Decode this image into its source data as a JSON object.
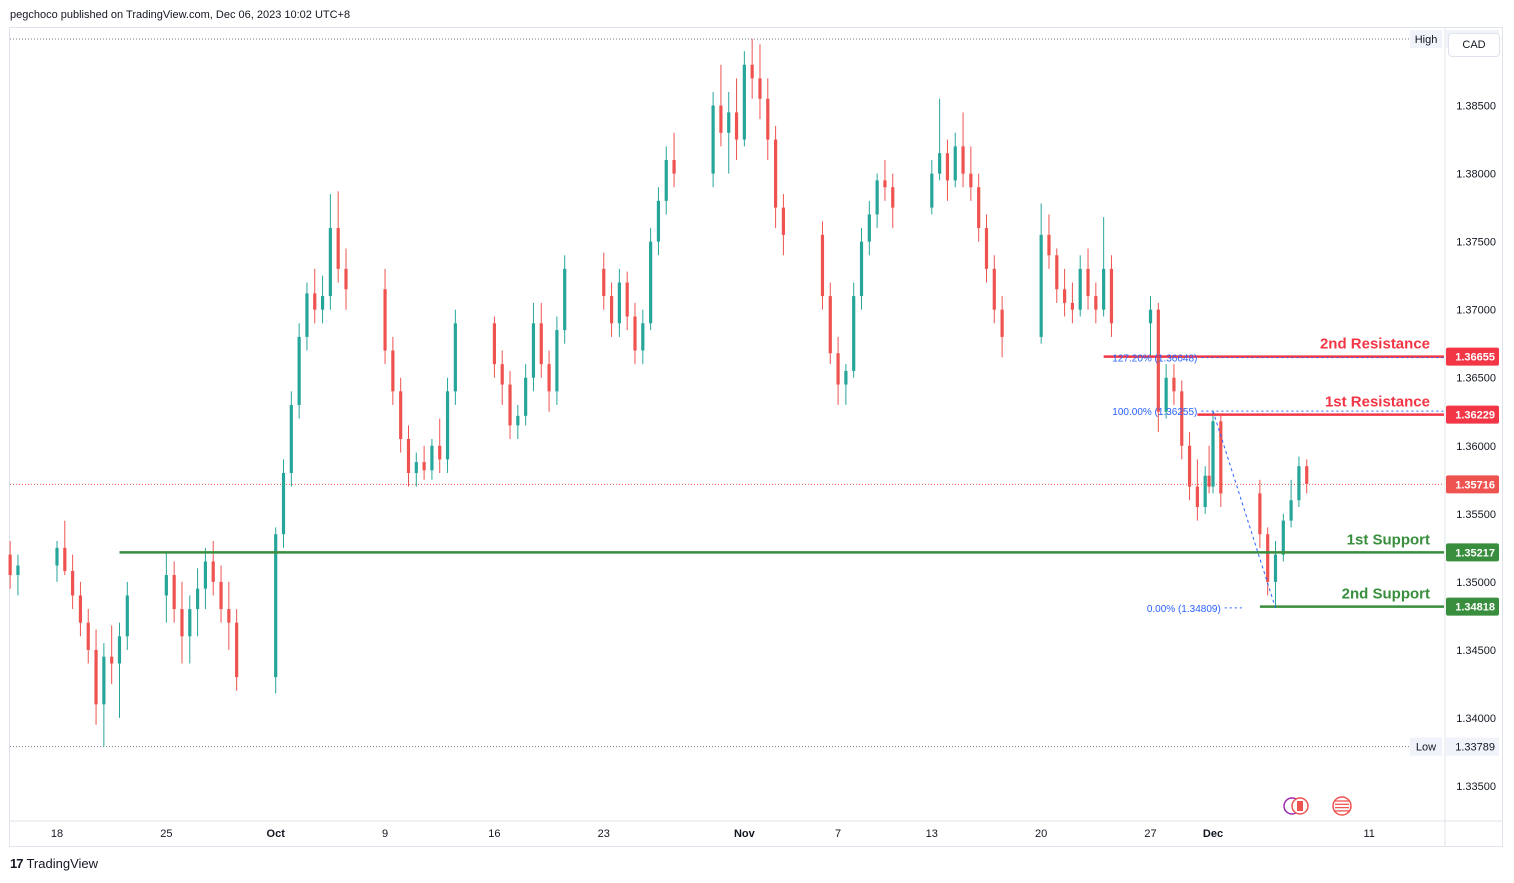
{
  "header": {
    "publisher_line": "pegchoco published on TradingView.com, Dec 06, 2023 10:02 UTC+8"
  },
  "footer": {
    "brand": "TradingView",
    "logo_glyph": "17"
  },
  "currency_button": "CAD",
  "colors": {
    "up": "#26a69a",
    "down": "#ef5350",
    "resistance": "#f23645",
    "support": "#388e3c",
    "fib": "#2962ff",
    "grid": "#f0f3fa",
    "axis_text": "#131722"
  },
  "chart_data": {
    "type": "candlestick",
    "symbol_currency": "CAD",
    "y_axis": {
      "ticks": [
        "1.38500",
        "1.38000",
        "1.37500",
        "1.37000",
        "1.36500",
        "1.36000",
        "1.35500",
        "1.35000",
        "1.34500",
        "1.34000",
        "1.33500"
      ],
      "tick_values": [
        1.385,
        1.38,
        1.375,
        1.37,
        1.365,
        1.36,
        1.355,
        1.35,
        1.345,
        1.34,
        1.335
      ],
      "ylim": [
        1.3325,
        1.3907
      ]
    },
    "x_axis": {
      "ticks": [
        "18",
        "25",
        "Oct",
        "9",
        "16",
        "23",
        "Nov",
        "7",
        "13",
        "20",
        "27",
        "Dec",
        "11"
      ],
      "tick_dates": [
        "2023-09-18",
        "2023-09-25",
        "2023-10-02",
        "2023-10-09",
        "2023-10-16",
        "2023-10-23",
        "2023-11-01",
        "2023-11-07",
        "2023-11-13",
        "2023-11-20",
        "2023-11-27",
        "2023-12-01",
        "2023-12-11"
      ]
    },
    "high": {
      "label": "High",
      "value": "1.38989"
    },
    "low": {
      "label": "Low",
      "value": "1.33789"
    },
    "last_price": "1.35716",
    "levels": [
      {
        "name": "2nd Resistance",
        "value": "1.36655",
        "kind": "resistance",
        "start_date": "2023-11-24"
      },
      {
        "name": "1st Resistance",
        "value": "1.36229",
        "kind": "resistance",
        "start_date": "2023-11-30"
      },
      {
        "name": "1st Support",
        "value": "1.35217",
        "kind": "support",
        "start_date": "2023-09-22"
      },
      {
        "name": "2nd Support",
        "value": "1.34818",
        "kind": "support",
        "start_date": "2023-12-04"
      }
    ],
    "fib_labels": [
      {
        "text": "127.20% (1.36648)",
        "value": 1.36648
      },
      {
        "text": "100.00% (1.36255)",
        "value": 1.36255
      },
      {
        "text": "0.00% (1.34809)",
        "value": 1.34809
      }
    ],
    "candles": [
      {
        "t": "2023-09-14 00:00",
        "o": 1.3545,
        "h": 1.356,
        "l": 1.353,
        "c": 1.354
      },
      {
        "t": "2023-09-14 12:00",
        "o": 1.354,
        "h": 1.3548,
        "l": 1.3515,
        "c": 1.352
      },
      {
        "t": "2023-09-15 00:00",
        "o": 1.352,
        "h": 1.353,
        "l": 1.3495,
        "c": 1.3505
      },
      {
        "t": "2023-09-15 12:00",
        "o": 1.3505,
        "h": 1.352,
        "l": 1.349,
        "c": 1.3512
      },
      {
        "t": "2023-09-18 00:00",
        "o": 1.3512,
        "h": 1.353,
        "l": 1.35,
        "c": 1.3525
      },
      {
        "t": "2023-09-18 12:00",
        "o": 1.3525,
        "h": 1.3545,
        "l": 1.3505,
        "c": 1.3508
      },
      {
        "t": "2023-09-19 00:00",
        "o": 1.3508,
        "h": 1.352,
        "l": 1.348,
        "c": 1.349
      },
      {
        "t": "2023-09-19 12:00",
        "o": 1.349,
        "h": 1.35,
        "l": 1.346,
        "c": 1.347
      },
      {
        "t": "2023-09-20 00:00",
        "o": 1.347,
        "h": 1.348,
        "l": 1.344,
        "c": 1.345
      },
      {
        "t": "2023-09-20 12:00",
        "o": 1.345,
        "h": 1.3465,
        "l": 1.3395,
        "c": 1.341
      },
      {
        "t": "2023-09-21 00:00",
        "o": 1.341,
        "h": 1.3455,
        "l": 1.3379,
        "c": 1.3445
      },
      {
        "t": "2023-09-21 12:00",
        "o": 1.3445,
        "h": 1.3468,
        "l": 1.3425,
        "c": 1.344
      },
      {
        "t": "2023-09-22 00:00",
        "o": 1.344,
        "h": 1.347,
        "l": 1.34,
        "c": 1.346
      },
      {
        "t": "2023-09-22 12:00",
        "o": 1.346,
        "h": 1.35,
        "l": 1.345,
        "c": 1.349
      },
      {
        "t": "2023-09-25 00:00",
        "o": 1.349,
        "h": 1.3522,
        "l": 1.347,
        "c": 1.3505
      },
      {
        "t": "2023-09-25 12:00",
        "o": 1.3505,
        "h": 1.3515,
        "l": 1.347,
        "c": 1.348
      },
      {
        "t": "2023-09-26 00:00",
        "o": 1.348,
        "h": 1.35,
        "l": 1.344,
        "c": 1.346
      },
      {
        "t": "2023-09-26 12:00",
        "o": 1.346,
        "h": 1.349,
        "l": 1.344,
        "c": 1.348
      },
      {
        "t": "2023-09-27 00:00",
        "o": 1.348,
        "h": 1.351,
        "l": 1.346,
        "c": 1.3495
      },
      {
        "t": "2023-09-27 12:00",
        "o": 1.3495,
        "h": 1.3525,
        "l": 1.348,
        "c": 1.3515
      },
      {
        "t": "2023-09-28 00:00",
        "o": 1.3515,
        "h": 1.353,
        "l": 1.349,
        "c": 1.35
      },
      {
        "t": "2023-09-28 12:00",
        "o": 1.35,
        "h": 1.3512,
        "l": 1.347,
        "c": 1.348
      },
      {
        "t": "2023-09-29 00:00",
        "o": 1.348,
        "h": 1.35,
        "l": 1.345,
        "c": 1.347
      },
      {
        "t": "2023-09-29 12:00",
        "o": 1.347,
        "h": 1.348,
        "l": 1.342,
        "c": 1.343
      },
      {
        "t": "2023-10-02 00:00",
        "o": 1.343,
        "h": 1.354,
        "l": 1.3418,
        "c": 1.3535
      },
      {
        "t": "2023-10-02 12:00",
        "o": 1.3535,
        "h": 1.359,
        "l": 1.3525,
        "c": 1.358
      },
      {
        "t": "2023-10-03 00:00",
        "o": 1.358,
        "h": 1.364,
        "l": 1.357,
        "c": 1.363
      },
      {
        "t": "2023-10-03 12:00",
        "o": 1.363,
        "h": 1.369,
        "l": 1.362,
        "c": 1.368
      },
      {
        "t": "2023-10-04 00:00",
        "o": 1.368,
        "h": 1.372,
        "l": 1.367,
        "c": 1.3712
      },
      {
        "t": "2023-10-04 12:00",
        "o": 1.3712,
        "h": 1.373,
        "l": 1.369,
        "c": 1.37
      },
      {
        "t": "2023-10-05 00:00",
        "o": 1.37,
        "h": 1.3725,
        "l": 1.369,
        "c": 1.371
      },
      {
        "t": "2023-10-05 12:00",
        "o": 1.371,
        "h": 1.3785,
        "l": 1.37,
        "c": 1.376
      },
      {
        "t": "2023-10-06 00:00",
        "o": 1.376,
        "h": 1.3787,
        "l": 1.372,
        "c": 1.373
      },
      {
        "t": "2023-10-06 12:00",
        "o": 1.373,
        "h": 1.3745,
        "l": 1.37,
        "c": 1.3715
      },
      {
        "t": "2023-10-09 00:00",
        "o": 1.3715,
        "h": 1.373,
        "l": 1.366,
        "c": 1.367
      },
      {
        "t": "2023-10-09 12:00",
        "o": 1.367,
        "h": 1.368,
        "l": 1.363,
        "c": 1.364
      },
      {
        "t": "2023-10-10 00:00",
        "o": 1.364,
        "h": 1.365,
        "l": 1.3595,
        "c": 1.3605
      },
      {
        "t": "2023-10-10 12:00",
        "o": 1.3605,
        "h": 1.3615,
        "l": 1.357,
        "c": 1.358
      },
      {
        "t": "2023-10-11 00:00",
        "o": 1.358,
        "h": 1.3595,
        "l": 1.357,
        "c": 1.3588
      },
      {
        "t": "2023-10-11 12:00",
        "o": 1.3588,
        "h": 1.36,
        "l": 1.3575,
        "c": 1.3582
      },
      {
        "t": "2023-10-12 00:00",
        "o": 1.3582,
        "h": 1.3605,
        "l": 1.3575,
        "c": 1.36
      },
      {
        "t": "2023-10-12 12:00",
        "o": 1.36,
        "h": 1.362,
        "l": 1.358,
        "c": 1.359
      },
      {
        "t": "2023-10-13 00:00",
        "o": 1.359,
        "h": 1.365,
        "l": 1.358,
        "c": 1.364
      },
      {
        "t": "2023-10-13 12:00",
        "o": 1.364,
        "h": 1.37,
        "l": 1.363,
        "c": 1.369
      },
      {
        "t": "2023-10-16 00:00",
        "o": 1.369,
        "h": 1.3695,
        "l": 1.365,
        "c": 1.366
      },
      {
        "t": "2023-10-16 12:00",
        "o": 1.366,
        "h": 1.367,
        "l": 1.363,
        "c": 1.3645
      },
      {
        "t": "2023-10-17 00:00",
        "o": 1.3645,
        "h": 1.3655,
        "l": 1.3605,
        "c": 1.3615
      },
      {
        "t": "2023-10-17 12:00",
        "o": 1.3615,
        "h": 1.363,
        "l": 1.3605,
        "c": 1.3622
      },
      {
        "t": "2023-10-18 00:00",
        "o": 1.3622,
        "h": 1.366,
        "l": 1.3615,
        "c": 1.365
      },
      {
        "t": "2023-10-18 12:00",
        "o": 1.365,
        "h": 1.3705,
        "l": 1.364,
        "c": 1.369
      },
      {
        "t": "2023-10-19 00:00",
        "o": 1.369,
        "h": 1.3705,
        "l": 1.365,
        "c": 1.366
      },
      {
        "t": "2023-10-19 12:00",
        "o": 1.366,
        "h": 1.367,
        "l": 1.3625,
        "c": 1.364
      },
      {
        "t": "2023-10-20 00:00",
        "o": 1.364,
        "h": 1.3695,
        "l": 1.363,
        "c": 1.3685
      },
      {
        "t": "2023-10-20 12:00",
        "o": 1.3685,
        "h": 1.374,
        "l": 1.3675,
        "c": 1.373
      },
      {
        "t": "2023-10-23 00:00",
        "o": 1.373,
        "h": 1.3742,
        "l": 1.37,
        "c": 1.371
      },
      {
        "t": "2023-10-23 12:00",
        "o": 1.371,
        "h": 1.372,
        "l": 1.368,
        "c": 1.369
      },
      {
        "t": "2023-10-24 00:00",
        "o": 1.369,
        "h": 1.373,
        "l": 1.368,
        "c": 1.372
      },
      {
        "t": "2023-10-24 12:00",
        "o": 1.372,
        "h": 1.3728,
        "l": 1.3685,
        "c": 1.3695
      },
      {
        "t": "2023-10-25 00:00",
        "o": 1.3695,
        "h": 1.3705,
        "l": 1.366,
        "c": 1.367
      },
      {
        "t": "2023-10-25 12:00",
        "o": 1.367,
        "h": 1.37,
        "l": 1.366,
        "c": 1.369
      },
      {
        "t": "2023-10-26 00:00",
        "o": 1.369,
        "h": 1.376,
        "l": 1.3685,
        "c": 1.375
      },
      {
        "t": "2023-10-26 12:00",
        "o": 1.375,
        "h": 1.379,
        "l": 1.374,
        "c": 1.378
      },
      {
        "t": "2023-10-27 00:00",
        "o": 1.378,
        "h": 1.382,
        "l": 1.377,
        "c": 1.381
      },
      {
        "t": "2023-10-27 12:00",
        "o": 1.381,
        "h": 1.383,
        "l": 1.379,
        "c": 1.38
      },
      {
        "t": "2023-10-30 00:00",
        "o": 1.38,
        "h": 1.386,
        "l": 1.379,
        "c": 1.385
      },
      {
        "t": "2023-10-30 12:00",
        "o": 1.385,
        "h": 1.388,
        "l": 1.382,
        "c": 1.383
      },
      {
        "t": "2023-10-31 00:00",
        "o": 1.383,
        "h": 1.386,
        "l": 1.38,
        "c": 1.3845
      },
      {
        "t": "2023-10-31 12:00",
        "o": 1.3845,
        "h": 1.387,
        "l": 1.381,
        "c": 1.3825
      },
      {
        "t": "2023-11-01 00:00",
        "o": 1.3825,
        "h": 1.389,
        "l": 1.382,
        "c": 1.388
      },
      {
        "t": "2023-11-01 12:00",
        "o": 1.388,
        "h": 1.3899,
        "l": 1.3855,
        "c": 1.387
      },
      {
        "t": "2023-11-02 00:00",
        "o": 1.387,
        "h": 1.3895,
        "l": 1.384,
        "c": 1.3855
      },
      {
        "t": "2023-11-02 12:00",
        "o": 1.3855,
        "h": 1.387,
        "l": 1.381,
        "c": 1.3825
      },
      {
        "t": "2023-11-03 00:00",
        "o": 1.3825,
        "h": 1.3835,
        "l": 1.376,
        "c": 1.3775
      },
      {
        "t": "2023-11-03 12:00",
        "o": 1.3775,
        "h": 1.3785,
        "l": 1.374,
        "c": 1.3755
      },
      {
        "t": "2023-11-06 00:00",
        "o": 1.3755,
        "h": 1.3765,
        "l": 1.37,
        "c": 1.371
      },
      {
        "t": "2023-11-06 12:00",
        "o": 1.371,
        "h": 1.372,
        "l": 1.366,
        "c": 1.3668
      },
      {
        "t": "2023-11-07 00:00",
        "o": 1.3668,
        "h": 1.368,
        "l": 1.363,
        "c": 1.3645
      },
      {
        "t": "2023-11-07 12:00",
        "o": 1.3645,
        "h": 1.366,
        "l": 1.363,
        "c": 1.3655
      },
      {
        "t": "2023-11-08 00:00",
        "o": 1.3655,
        "h": 1.372,
        "l": 1.365,
        "c": 1.371
      },
      {
        "t": "2023-11-08 12:00",
        "o": 1.371,
        "h": 1.376,
        "l": 1.37,
        "c": 1.375
      },
      {
        "t": "2023-11-09 00:00",
        "o": 1.375,
        "h": 1.378,
        "l": 1.374,
        "c": 1.377
      },
      {
        "t": "2023-11-09 12:00",
        "o": 1.377,
        "h": 1.38,
        "l": 1.376,
        "c": 1.3795
      },
      {
        "t": "2023-11-10 00:00",
        "o": 1.3795,
        "h": 1.381,
        "l": 1.378,
        "c": 1.379
      },
      {
        "t": "2023-11-10 12:00",
        "o": 1.379,
        "h": 1.38,
        "l": 1.376,
        "c": 1.3775
      },
      {
        "t": "2023-11-13 00:00",
        "o": 1.3775,
        "h": 1.381,
        "l": 1.377,
        "c": 1.38
      },
      {
        "t": "2023-11-13 12:00",
        "o": 1.38,
        "h": 1.3855,
        "l": 1.3795,
        "c": 1.3815
      },
      {
        "t": "2023-11-14 00:00",
        "o": 1.3815,
        "h": 1.3825,
        "l": 1.378,
        "c": 1.3795
      },
      {
        "t": "2023-11-14 12:00",
        "o": 1.3795,
        "h": 1.383,
        "l": 1.379,
        "c": 1.382
      },
      {
        "t": "2023-11-15 00:00",
        "o": 1.382,
        "h": 1.3845,
        "l": 1.379,
        "c": 1.38
      },
      {
        "t": "2023-11-15 12:00",
        "o": 1.38,
        "h": 1.382,
        "l": 1.378,
        "c": 1.379
      },
      {
        "t": "2023-11-16 00:00",
        "o": 1.379,
        "h": 1.38,
        "l": 1.375,
        "c": 1.376
      },
      {
        "t": "2023-11-16 12:00",
        "o": 1.376,
        "h": 1.377,
        "l": 1.372,
        "c": 1.373
      },
      {
        "t": "2023-11-17 00:00",
        "o": 1.373,
        "h": 1.374,
        "l": 1.369,
        "c": 1.37
      },
      {
        "t": "2023-11-17 12:00",
        "o": 1.37,
        "h": 1.371,
        "l": 1.3665,
        "c": 1.368
      },
      {
        "t": "2023-11-20 00:00",
        "o": 1.368,
        "h": 1.3778,
        "l": 1.3675,
        "c": 1.3755
      },
      {
        "t": "2023-11-20 12:00",
        "o": 1.3755,
        "h": 1.377,
        "l": 1.373,
        "c": 1.374
      },
      {
        "t": "2023-11-21 00:00",
        "o": 1.374,
        "h": 1.3745,
        "l": 1.3705,
        "c": 1.3715
      },
      {
        "t": "2023-11-21 12:00",
        "o": 1.3715,
        "h": 1.373,
        "l": 1.3695,
        "c": 1.3705
      },
      {
        "t": "2023-11-22 00:00",
        "o": 1.3705,
        "h": 1.372,
        "l": 1.369,
        "c": 1.37
      },
      {
        "t": "2023-11-22 12:00",
        "o": 1.37,
        "h": 1.374,
        "l": 1.3695,
        "c": 1.373
      },
      {
        "t": "2023-11-23 00:00",
        "o": 1.373,
        "h": 1.3745,
        "l": 1.37,
        "c": 1.371
      },
      {
        "t": "2023-11-23 12:00",
        "o": 1.371,
        "h": 1.372,
        "l": 1.369,
        "c": 1.37
      },
      {
        "t": "2023-11-24 00:00",
        "o": 1.37,
        "h": 1.3768,
        "l": 1.3695,
        "c": 1.373
      },
      {
        "t": "2023-11-24 12:00",
        "o": 1.373,
        "h": 1.374,
        "l": 1.368,
        "c": 1.369
      },
      {
        "t": "2023-11-27 00:00",
        "o": 1.369,
        "h": 1.371,
        "l": 1.3665,
        "c": 1.37
      },
      {
        "t": "2023-11-27 12:00",
        "o": 1.37,
        "h": 1.3705,
        "l": 1.361,
        "c": 1.3625
      },
      {
        "t": "2023-11-28 00:00",
        "o": 1.3625,
        "h": 1.366,
        "l": 1.362,
        "c": 1.365
      },
      {
        "t": "2023-11-28 12:00",
        "o": 1.365,
        "h": 1.366,
        "l": 1.363,
        "c": 1.364
      },
      {
        "t": "2023-11-29 00:00",
        "o": 1.364,
        "h": 1.3648,
        "l": 1.359,
        "c": 1.36
      },
      {
        "t": "2023-11-29 12:00",
        "o": 1.36,
        "h": 1.361,
        "l": 1.356,
        "c": 1.357
      },
      {
        "t": "2023-11-30 00:00",
        "o": 1.357,
        "h": 1.359,
        "l": 1.3545,
        "c": 1.3555
      },
      {
        "t": "2023-11-30 12:00",
        "o": 1.3555,
        "h": 1.3585,
        "l": 1.355,
        "c": 1.3578
      },
      {
        "t": "2023-11-30 18:00",
        "o": 1.3578,
        "h": 1.36,
        "l": 1.3565,
        "c": 1.357
      },
      {
        "t": "2023-12-01 00:00",
        "o": 1.357,
        "h": 1.3626,
        "l": 1.3565,
        "c": 1.3618
      },
      {
        "t": "2023-12-01 12:00",
        "o": 1.3618,
        "h": 1.3622,
        "l": 1.3555,
        "c": 1.3565
      },
      {
        "t": "2023-12-04 00:00",
        "o": 1.3565,
        "h": 1.3575,
        "l": 1.3525,
        "c": 1.3535
      },
      {
        "t": "2023-12-04 12:00",
        "o": 1.3535,
        "h": 1.354,
        "l": 1.349,
        "c": 1.35
      },
      {
        "t": "2023-12-05 00:00",
        "o": 1.35,
        "h": 1.353,
        "l": 1.3481,
        "c": 1.352
      },
      {
        "t": "2023-12-05 12:00",
        "o": 1.352,
        "h": 1.355,
        "l": 1.3515,
        "c": 1.3545
      },
      {
        "t": "2023-12-06 00:00",
        "o": 1.3545,
        "h": 1.3575,
        "l": 1.354,
        "c": 1.356
      },
      {
        "t": "2023-12-06 12:00",
        "o": 1.356,
        "h": 1.3592,
        "l": 1.3555,
        "c": 1.3585
      },
      {
        "t": "2023-12-07 00:00",
        "o": 1.3585,
        "h": 1.359,
        "l": 1.3565,
        "c": 1.3572
      }
    ]
  }
}
